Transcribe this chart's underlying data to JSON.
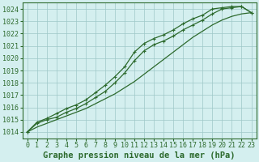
{
  "title": "Graphe pression niveau de la mer (hPa)",
  "hours": [
    0,
    1,
    2,
    3,
    4,
    5,
    6,
    7,
    8,
    9,
    10,
    11,
    12,
    13,
    14,
    15,
    16,
    17,
    18,
    19,
    20,
    21,
    22,
    23
  ],
  "line_upper": [
    1014.0,
    1014.8,
    1015.1,
    1015.5,
    1015.9,
    1016.2,
    1016.6,
    1017.2,
    1017.8,
    1018.5,
    1019.3,
    1020.5,
    1021.2,
    1021.6,
    1021.9,
    1022.3,
    1022.8,
    1023.2,
    1023.5,
    1024.0,
    1024.1,
    1024.2,
    1024.2,
    1023.7
  ],
  "line_lower": [
    1014.0,
    1014.7,
    1015.0,
    1015.2,
    1015.6,
    1015.9,
    1016.3,
    1016.8,
    1017.3,
    1018.0,
    1018.8,
    1019.8,
    1020.6,
    1021.1,
    1021.4,
    1021.8,
    1022.3,
    1022.7,
    1023.1,
    1023.6,
    1024.0,
    1024.1,
    1024.2,
    1023.7
  ],
  "line_straight": [
    1014.0,
    1014.4,
    1014.7,
    1015.0,
    1015.3,
    1015.6,
    1015.9,
    1016.3,
    1016.7,
    1017.1,
    1017.6,
    1018.1,
    1018.7,
    1019.3,
    1019.9,
    1020.5,
    1021.1,
    1021.7,
    1022.2,
    1022.7,
    1023.1,
    1023.4,
    1023.6,
    1023.7
  ],
  "line_color": "#2d6a2d",
  "bg_color": "#d4efef",
  "grid_color": "#9ec8c8",
  "ylim": [
    1013.5,
    1024.5
  ],
  "yticks": [
    1014,
    1015,
    1016,
    1017,
    1018,
    1019,
    1020,
    1021,
    1022,
    1023,
    1024
  ],
  "title_fontsize": 7.5,
  "tick_fontsize": 6.0,
  "linewidth": 0.9,
  "markersize": 3.5
}
